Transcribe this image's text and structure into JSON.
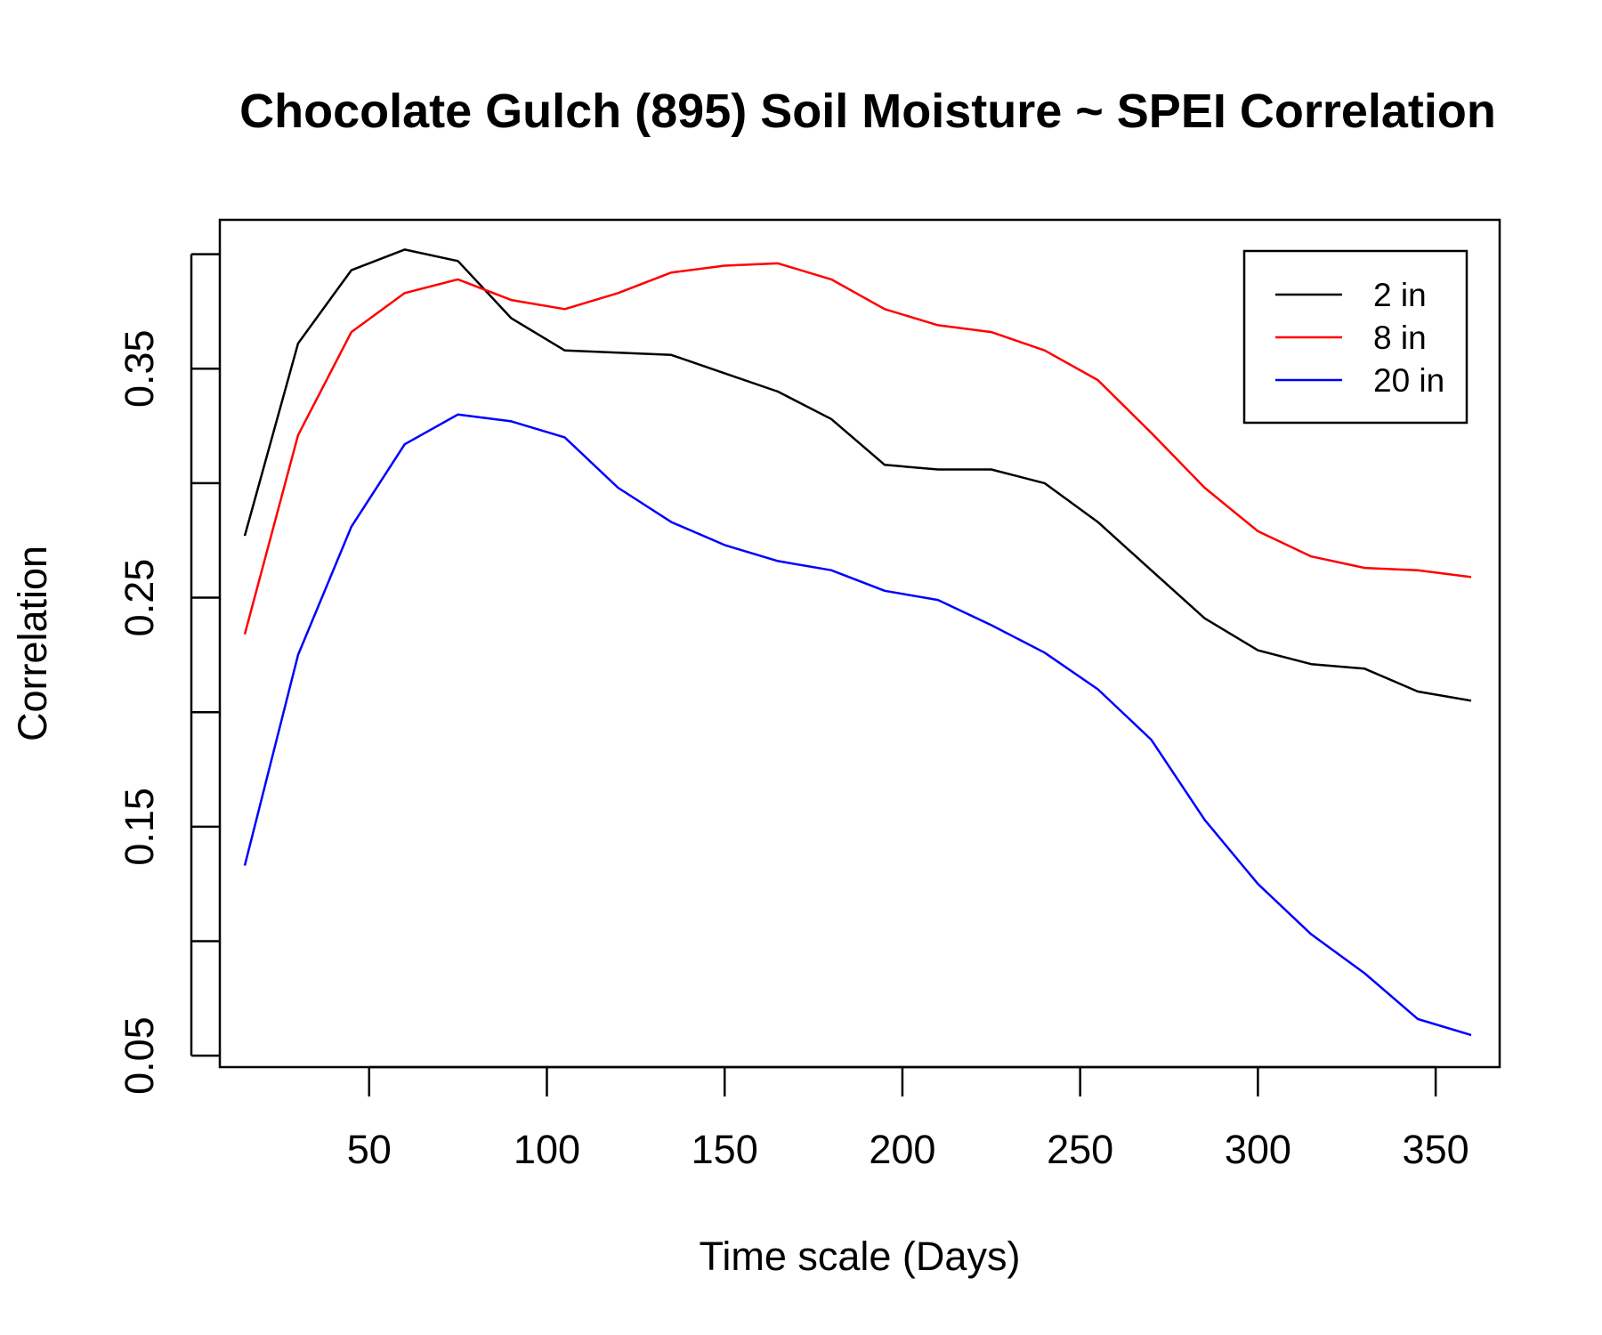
{
  "chart_data": {
    "type": "line",
    "title": "Chocolate Gulch (895) Soil Moisture ~ SPEI Correlation",
    "xlabel": "Time scale (Days)",
    "ylabel": "Correlation",
    "xlim": [
      8,
      368
    ],
    "ylim": [
      0.045,
      0.415
    ],
    "x_ticks": [
      50,
      100,
      150,
      200,
      250,
      300,
      350
    ],
    "x_tick_labels": [
      "50",
      "100",
      "150",
      "200",
      "250",
      "300",
      "350"
    ],
    "y_ticks": [
      0.05,
      0.1,
      0.15,
      0.2,
      0.25,
      0.3,
      0.35,
      0.4
    ],
    "y_tick_labels": [
      "0.05",
      "",
      "0.15",
      "",
      "0.25",
      "",
      "0.35",
      ""
    ],
    "grid": false,
    "legend_position": "top-right",
    "x": [
      15,
      30,
      45,
      60,
      75,
      90,
      105,
      120,
      135,
      150,
      165,
      180,
      195,
      210,
      225,
      240,
      255,
      270,
      285,
      300,
      315,
      330,
      345,
      360
    ],
    "series": [
      {
        "name": "2 in",
        "color": "#000000",
        "values": [
          0.277,
          0.361,
          0.393,
          0.402,
          0.397,
          0.372,
          0.358,
          0.357,
          0.356,
          0.348,
          0.34,
          0.328,
          0.308,
          0.306,
          0.306,
          0.3,
          0.283,
          0.262,
          0.241,
          0.227,
          0.221,
          0.219,
          0.209,
          0.205
        ],
        "line": "solid"
      },
      {
        "name": "8 in",
        "color": "#ff0000",
        "values": [
          0.234,
          0.321,
          0.366,
          0.383,
          0.389,
          0.38,
          0.376,
          0.383,
          0.392,
          0.395,
          0.396,
          0.389,
          0.376,
          0.369,
          0.366,
          0.358,
          0.345,
          0.322,
          0.298,
          0.279,
          0.268,
          0.263,
          0.262,
          0.259
        ],
        "line": "solid"
      },
      {
        "name": "20 in",
        "color": "#0000ff",
        "values": [
          0.133,
          0.225,
          0.281,
          0.317,
          0.33,
          0.327,
          0.32,
          0.298,
          0.283,
          0.273,
          0.266,
          0.262,
          0.253,
          0.249,
          0.238,
          0.226,
          0.21,
          0.188,
          0.153,
          0.125,
          0.103,
          0.086,
          0.066,
          0.059
        ],
        "line": "solid"
      }
    ]
  }
}
